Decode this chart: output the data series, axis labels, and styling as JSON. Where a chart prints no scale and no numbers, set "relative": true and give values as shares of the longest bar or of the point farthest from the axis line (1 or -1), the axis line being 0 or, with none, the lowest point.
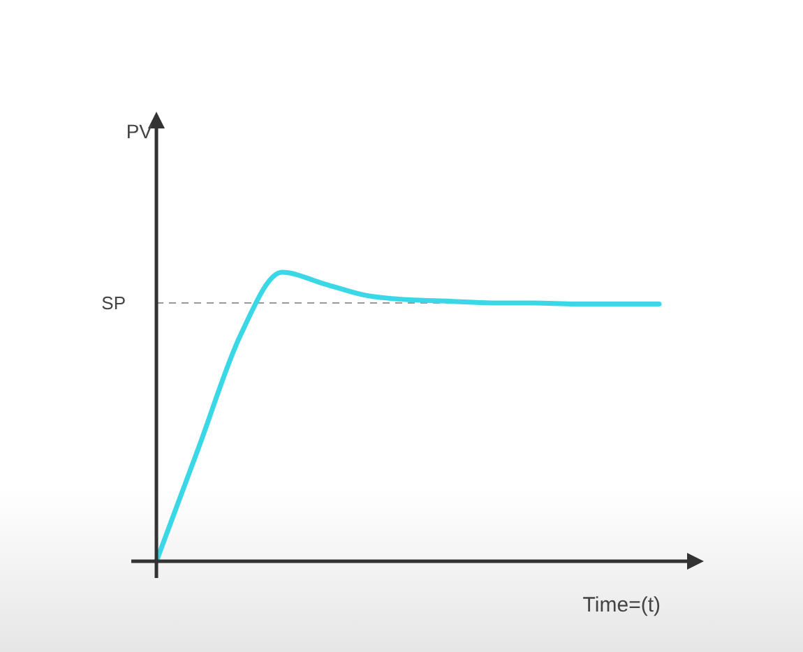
{
  "chart_data": {
    "type": "line",
    "relative": true,
    "xlabel": "Time=(t)",
    "annotations": [
      "PV"
    ],
    "categories": [
      null,
      null,
      null,
      null,
      null,
      null,
      null,
      null,
      null,
      null,
      null,
      null,
      null
    ],
    "series": [
      {
        "color": "#3ad8e6",
        "values": [
          0,
          0.39,
          0.78,
          1.0,
          0.96,
          0.92,
          0.905,
          0.9,
          0.894,
          0.894,
          0.89,
          0.89,
          0.89
        ]
      }
    ],
    "ref_lines": [
      {
        "axis": "y",
        "value": 0.894,
        "label": "SP",
        "color": "#999999",
        "line_style": "dashed"
      }
    ]
  }
}
